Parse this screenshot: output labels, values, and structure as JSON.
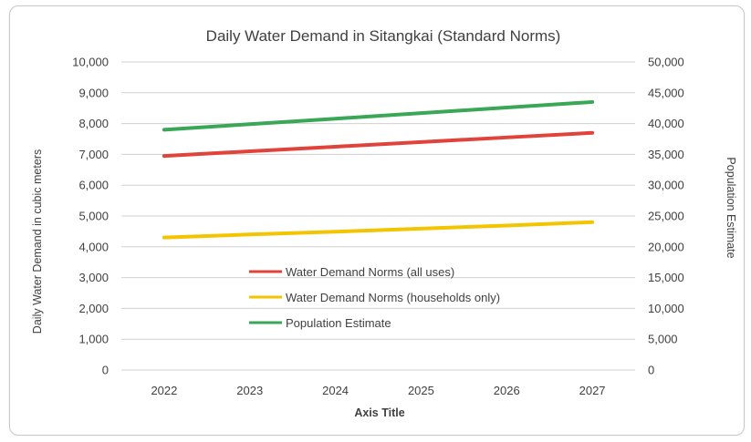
{
  "chart_data": {
    "type": "line",
    "title": "Daily Water Demand in Sitangkai (Standard Norms)",
    "xlabel": "Axis Title",
    "ylabel": "Daily Water Demand in cubic meters",
    "y2label": "Population Estimate",
    "categories": [
      "2022",
      "2023",
      "2024",
      "2025",
      "2026",
      "2027"
    ],
    "ylim": [
      0,
      10000
    ],
    "y2lim": [
      0,
      50000
    ],
    "y_ticks": [
      "0",
      "1,000",
      "2,000",
      "3,000",
      "4,000",
      "5,000",
      "6,000",
      "7,000",
      "8,000",
      "9,000",
      "10,000"
    ],
    "y2_ticks": [
      "0",
      "5,000",
      "10,000",
      "15,000",
      "20,000",
      "25,000",
      "30,000",
      "35,000",
      "40,000",
      "45,000",
      "50,000"
    ],
    "grid": "horizontal",
    "legend_position": "inside-bottom-center",
    "series": [
      {
        "name": "Water Demand Norms (all uses)",
        "axis": "left",
        "color": "#e0433a",
        "values": [
          6950,
          7100,
          7250,
          7400,
          7550,
          7700
        ]
      },
      {
        "name": "Water Demand Norms (households only)",
        "axis": "left",
        "color": "#f2c500",
        "values": [
          4300,
          4400,
          4490,
          4590,
          4690,
          4800
        ]
      },
      {
        "name": "Population Estimate",
        "axis": "right",
        "color": "#3aa757",
        "values": [
          39000,
          39900,
          40800,
          41700,
          42600,
          43500
        ]
      }
    ]
  }
}
